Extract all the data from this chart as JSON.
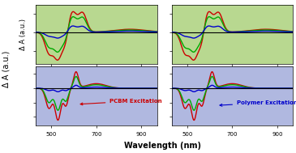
{
  "wavelength_range": [
    430,
    970
  ],
  "panel_labels": [
    "PCBM Excitation",
    "Polymer Excitation"
  ],
  "panel_label_colors": [
    "#cc0000",
    "#0000cc"
  ],
  "line_colors": [
    "#cc0000",
    "#00aa00",
    "#0000cc"
  ],
  "bg_top_color": "#c8e0b0",
  "bg_bottom_color": "#c8c8e8",
  "xlabel": "Wavelength (nm)",
  "ylabel": "Δ A (a.u.)",
  "xticks": [
    500,
    700,
    900
  ],
  "figsize": [
    3.65,
    1.89
  ],
  "dpi": 100
}
